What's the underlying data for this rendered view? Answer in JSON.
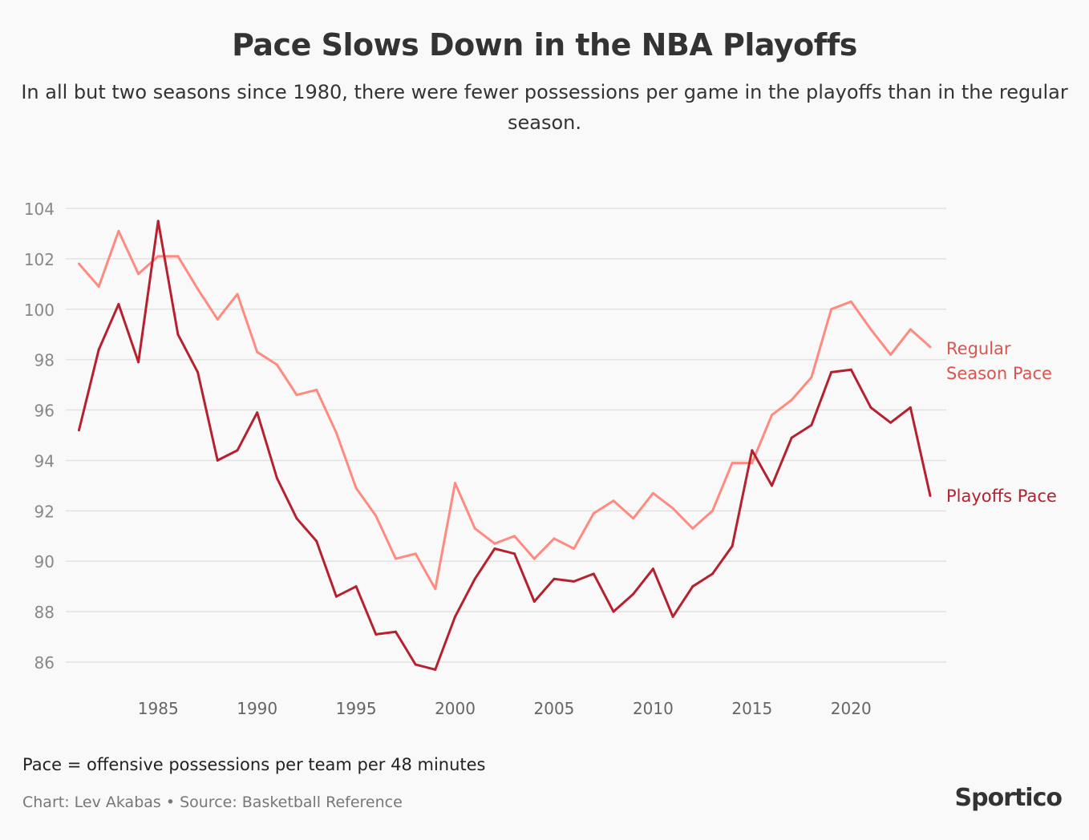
{
  "colors": {
    "regular": "#ff8a80",
    "playoffs": "#b5212e",
    "grid": "#e2e2e2",
    "tick": "#888888"
  },
  "chart_data": {
    "type": "line",
    "title": "Pace Slows Down in the NBA Playoffs",
    "subtitle": "In all but two seasons since 1980, there were fewer possessions per game in the playoffs than in the regular season.",
    "xlabel": "",
    "ylabel": "",
    "ylim": [
      86,
      104
    ],
    "xlim": [
      1981,
      2024
    ],
    "yticks": [
      86,
      88,
      90,
      92,
      94,
      96,
      98,
      100,
      102,
      104
    ],
    "xticks": [
      1985,
      1990,
      1995,
      2000,
      2005,
      2010,
      2015,
      2020
    ],
    "grid": true,
    "legend": "direct-labels-right",
    "x": [
      1981,
      1982,
      1983,
      1984,
      1985,
      1986,
      1987,
      1988,
      1989,
      1990,
      1991,
      1992,
      1993,
      1994,
      1995,
      1996,
      1997,
      1998,
      1999,
      2000,
      2001,
      2002,
      2003,
      2004,
      2005,
      2006,
      2007,
      2008,
      2009,
      2010,
      2011,
      2012,
      2013,
      2014,
      2015,
      2016,
      2017,
      2018,
      2019,
      2020,
      2021,
      2022,
      2023,
      2024
    ],
    "series": [
      {
        "name": "Regular Season Pace",
        "label_lines": [
          "Regular",
          "Season Pace"
        ],
        "color_key": "regular",
        "values": [
          101.8,
          100.9,
          103.1,
          101.4,
          102.1,
          102.1,
          100.8,
          99.6,
          100.6,
          98.3,
          97.8,
          96.6,
          96.8,
          95.1,
          92.9,
          91.8,
          90.1,
          90.3,
          88.9,
          93.1,
          91.3,
          90.7,
          91.0,
          90.1,
          90.9,
          90.5,
          91.9,
          92.4,
          91.7,
          92.7,
          92.1,
          91.3,
          92.0,
          93.9,
          93.9,
          95.8,
          96.4,
          97.3,
          100.0,
          100.3,
          99.2,
          98.2,
          99.2,
          98.5
        ]
      },
      {
        "name": "Playoffs Pace",
        "label_lines": [
          "Playoffs Pace"
        ],
        "color_key": "playoffs",
        "values": [
          95.2,
          98.4,
          100.2,
          97.9,
          103.5,
          99.0,
          97.5,
          94.0,
          94.4,
          95.9,
          93.3,
          91.7,
          90.8,
          88.6,
          89.0,
          87.1,
          87.2,
          85.9,
          85.7,
          87.8,
          89.3,
          90.5,
          90.3,
          88.4,
          89.3,
          89.2,
          89.5,
          88.0,
          88.7,
          89.7,
          87.8,
          89.0,
          89.5,
          90.6,
          94.4,
          93.0,
          94.9,
          95.4,
          97.5,
          97.6,
          96.1,
          95.5,
          96.1,
          92.6
        ]
      }
    ]
  },
  "footer": {
    "note": "Pace = offensive possessions per team per 48 minutes",
    "credit": "Chart: Lev Akabas • Source: Basketball Reference",
    "logo": "Sportico"
  }
}
